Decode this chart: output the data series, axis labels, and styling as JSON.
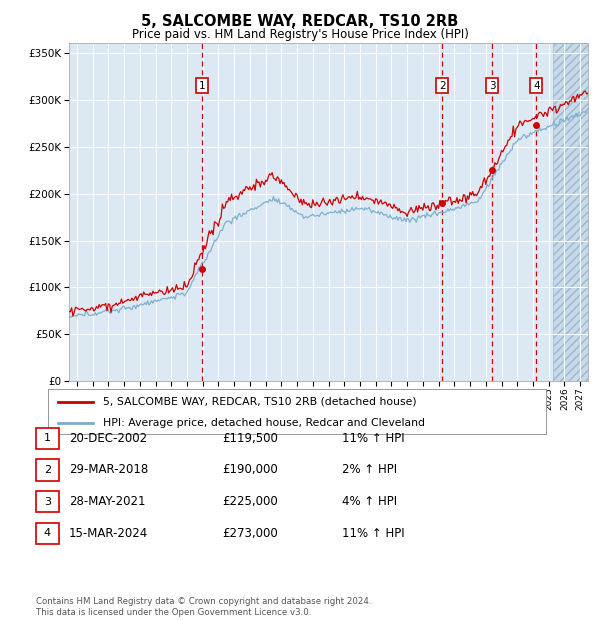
{
  "title": "5, SALCOMBE WAY, REDCAR, TS10 2RB",
  "subtitle": "Price paid vs. HM Land Registry's House Price Index (HPI)",
  "hpi_label": "HPI: Average price, detached house, Redcar and Cleveland",
  "price_label": "5, SALCOMBE WAY, REDCAR, TS10 2RB (detached house)",
  "sales": [
    {
      "num": 1,
      "date": "20-DEC-2002",
      "price": 119500,
      "pct": "11%",
      "dir": "↑"
    },
    {
      "num": 2,
      "date": "29-MAR-2018",
      "price": 190000,
      "pct": "2%",
      "dir": "↑"
    },
    {
      "num": 3,
      "date": "28-MAY-2021",
      "price": 225000,
      "pct": "4%",
      "dir": "↑"
    },
    {
      "num": 4,
      "date": "15-MAR-2024",
      "price": 273000,
      "pct": "11%",
      "dir": "↑"
    }
  ],
  "sale_dates_decimal": [
    2002.97,
    2018.24,
    2021.41,
    2024.21
  ],
  "ylim": [
    0,
    360000
  ],
  "xlim_start": 1994.5,
  "xlim_end": 2027.5,
  "background_color": "#dce9f5",
  "hatch_start": 2025.3,
  "grid_color": "#ffffff",
  "price_line_color": "#cc0000",
  "hpi_line_color": "#7aadcc",
  "vline_color": "#cc0000",
  "box_color": "#cc0000",
  "footer": "Contains HM Land Registry data © Crown copyright and database right 2024.\nThis data is licensed under the Open Government Licence v3.0."
}
